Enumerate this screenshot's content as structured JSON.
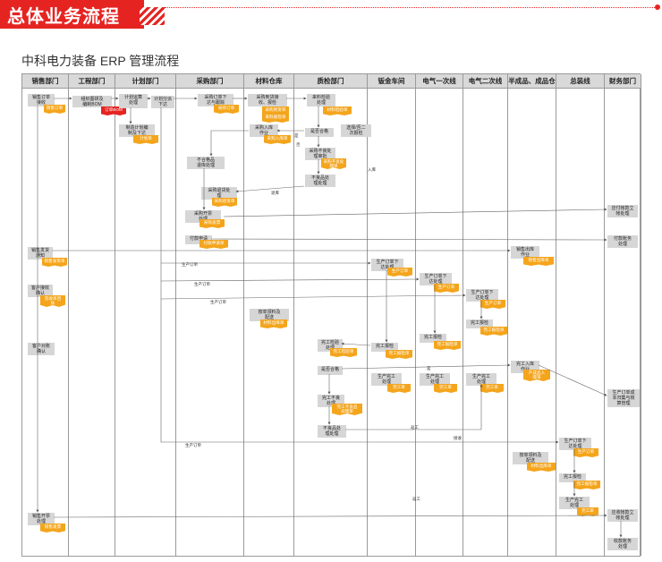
{
  "header": {
    "title": "总体业务流程"
  },
  "subtitle": "中科电力装备 ERP 管理流程",
  "lanes": [
    "销售部门",
    "工程部门",
    "计划部门",
    "采购部门",
    "材料仓库",
    "质检部门",
    "钣金车间",
    "电气一次线",
    "电气二次线",
    "半成品、成品仓",
    "总装线",
    "财务部门"
  ],
  "sales": {
    "order_receive": "销售订单\n接收",
    "order_doc": "销售订单",
    "shipping_notice": "销售发货\n通知",
    "ship_doc": "销售发货单",
    "customer_receive": "客户接收\n确认",
    "receipt_doc": "签收单回\n执",
    "customer_check": "客户对账\n确认",
    "invoice": "销售开票\n处理",
    "invoice_doc": "销售发票"
  },
  "engineering": {
    "bom_design": "组织图研及\n编制BOM",
    "bom_doc": "订单BOM"
  },
  "planning": {
    "calc": "计划运算\n处理",
    "plan_create": "制造计划编\n制及下达",
    "plan_doc": "计划单",
    "dispatch": "计划分派\n下达"
  },
  "purchasing": {
    "po_issue": "采购订单下\n达与跟踪",
    "po_doc": "采购订单",
    "receipt": "采购入库\n作业",
    "unqualified": "不合格品\n退库处理",
    "return": "采购退货处\n理",
    "return_doc": "采购退货单",
    "invoice": "采购开票\n处理",
    "invoice_doc": "采购发票",
    "payment": "付款申请",
    "payment_doc": "付款申请单"
  },
  "warehouse": {
    "arrival": "采购到货接\n收、报检",
    "arrival_doc": "采购到货单",
    "inspect_doc": "来料报检单",
    "stock_in": "采购入库\n作业",
    "stock_in_doc": "采购入库单",
    "issue": "按单领料及\n配送",
    "issue_doc": "材料出库单"
  },
  "qc": {
    "incoming": "来料检验\n处理",
    "incoming_doc": "材料检验单",
    "qualified": "是否合格",
    "special": "选择/否二\n次报检",
    "reject_handle": "采购不良处\n理审批",
    "reject_doc": "采购不良处\n理单",
    "return_ok": "不良品处\n理处理",
    "final_check": "完工检验\n处理",
    "final_doc": "完工检验单",
    "pass": "是否合格",
    "finish_unqualified": "完工不良\n处理",
    "finish_unqualified_doc": "完工不良品\n处理单",
    "rework": "不良品处\n理处理"
  },
  "sheet_metal": {
    "order": "生产订单下\n达处理",
    "order_doc": "生产订单",
    "report": "完工报检",
    "report_doc": "完工报检单",
    "complete": "生产完工\n处理",
    "complete_doc": "完工单"
  },
  "primary": {
    "order": "生产订单下\n达处理",
    "order_doc": "生产订单",
    "report": "完工报检",
    "report_doc": "完工报检单",
    "complete": "生产完工\n处理",
    "complete_doc": "完工单"
  },
  "secondary": {
    "order": "生产订单下\n达处理",
    "order_doc": "生产订单",
    "report": "完工报检",
    "report_doc": "完工报检单",
    "complete": "生产完工\n处理",
    "complete_doc": "完工单"
  },
  "semi_goods": {
    "shipment": "销售出库\n作业",
    "shipment_doc": "销售出库单",
    "receive": "完工入库\n作业",
    "receive_doc": "产成品入\n库单"
  },
  "assembly": {
    "order": "生产订单下\n达处理",
    "order_doc": "生产订单",
    "issue": "按单领料及\n配送",
    "issue_doc": "材料出库单",
    "report": "完工报检",
    "report_doc": "完工报检单",
    "complete": "生产完工\n处理",
    "complete_doc": "完工单"
  },
  "finance": {
    "ap": "应付帐款立\n帐处理",
    "payment": "付款账务\n处理",
    "cost": "生产订单成\n本归集与核\n算管理",
    "ar": "应收帐款立\n帐处理",
    "receipt": "收款账务\n处理"
  },
  "arrow_labels": {
    "prod_order": "生产订单",
    "reject": "否",
    "yes": "是",
    "return": "退库",
    "warehousing": "入库",
    "rework": "返工",
    "receive": "接收"
  }
}
